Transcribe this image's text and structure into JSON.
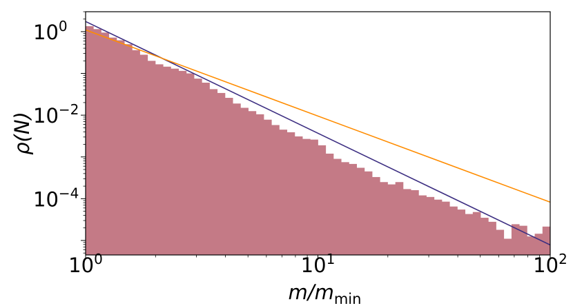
{
  "chart_data": {
    "type": "bar",
    "title": "",
    "xlabel": "m/m",
    "xlabel_sub": "min",
    "ylabel": "ρ(N)",
    "xscale": "log",
    "yscale": "log",
    "xlim": [
      1,
      100
    ],
    "ylim": [
      4.5e-06,
      3.0
    ],
    "grid": false,
    "x_ticks": [
      {
        "value": 1,
        "base": "10",
        "exp": "0"
      },
      {
        "value": 10,
        "base": "10",
        "exp": "1"
      },
      {
        "value": 100,
        "base": "10",
        "exp": "2"
      }
    ],
    "y_ticks": [
      {
        "value": 1,
        "base": "10",
        "exp": "0"
      },
      {
        "value": 0.01,
        "base": "10",
        "exp": "−2"
      },
      {
        "value": 0.0001,
        "base": "10",
        "exp": "−4"
      }
    ],
    "histogram": {
      "name": "",
      "color": "#c47a86",
      "bin_edges": [
        1.0,
        1.0798,
        1.1659,
        1.2589,
        1.3594,
        1.4678,
        1.5849,
        1.7113,
        1.8478,
        1.9953,
        2.1544,
        2.3263,
        2.5119,
        2.7123,
        2.9286,
        3.1623,
        3.4145,
        3.6869,
        3.9811,
        4.2987,
        4.6416,
        5.0119,
        5.4117,
        5.8434,
        6.3096,
        6.8129,
        7.3564,
        7.9433,
        8.577,
        9.2612,
        10.0,
        10.798,
        11.659,
        12.589,
        13.594,
        14.678,
        15.849,
        17.113,
        18.478,
        19.953,
        21.544,
        23.263,
        25.119,
        27.123,
        29.286,
        31.623,
        34.145,
        36.869,
        39.811,
        42.987,
        46.416,
        50.119,
        54.117,
        58.434,
        63.096,
        68.129,
        73.564,
        79.433,
        85.77,
        92.612,
        100.0
      ],
      "values": [
        1.35,
        1.15,
        0.95,
        0.72,
        0.62,
        0.5,
        0.36,
        0.28,
        0.2,
        0.165,
        0.145,
        0.13,
        0.115,
        0.1,
        0.075,
        0.06,
        0.042,
        0.034,
        0.026,
        0.019,
        0.015,
        0.0125,
        0.0105,
        0.0078,
        0.0058,
        0.0045,
        0.0039,
        0.0031,
        0.0027,
        0.0026,
        0.0019,
        0.0012,
        0.0009,
        0.00075,
        0.00068,
        0.00055,
        0.00045,
        0.00033,
        0.00025,
        0.00022,
        0.00025,
        0.00017,
        0.00016,
        0.00012,
        0.00011,
        9.5e-05,
        8.5e-05,
        6.5e-05,
        5.5e-05,
        4.3e-05,
        4.8e-05,
        3.5e-05,
        2.8e-05,
        1.8e-05,
        1.1e-05,
        2.45e-05,
        2.25e-05,
        1.25e-05,
        1.45e-05,
        2.15e-05
      ]
    },
    "lines": [
      {
        "name": "",
        "color": "#3d2f82",
        "points": [
          [
            1,
            1.75
          ],
          [
            100,
            7.8e-06
          ]
        ]
      },
      {
        "name": "",
        "color": "#ff8c00",
        "points": [
          [
            1,
            1.1
          ],
          [
            100,
            8.25e-05
          ]
        ]
      }
    ]
  }
}
